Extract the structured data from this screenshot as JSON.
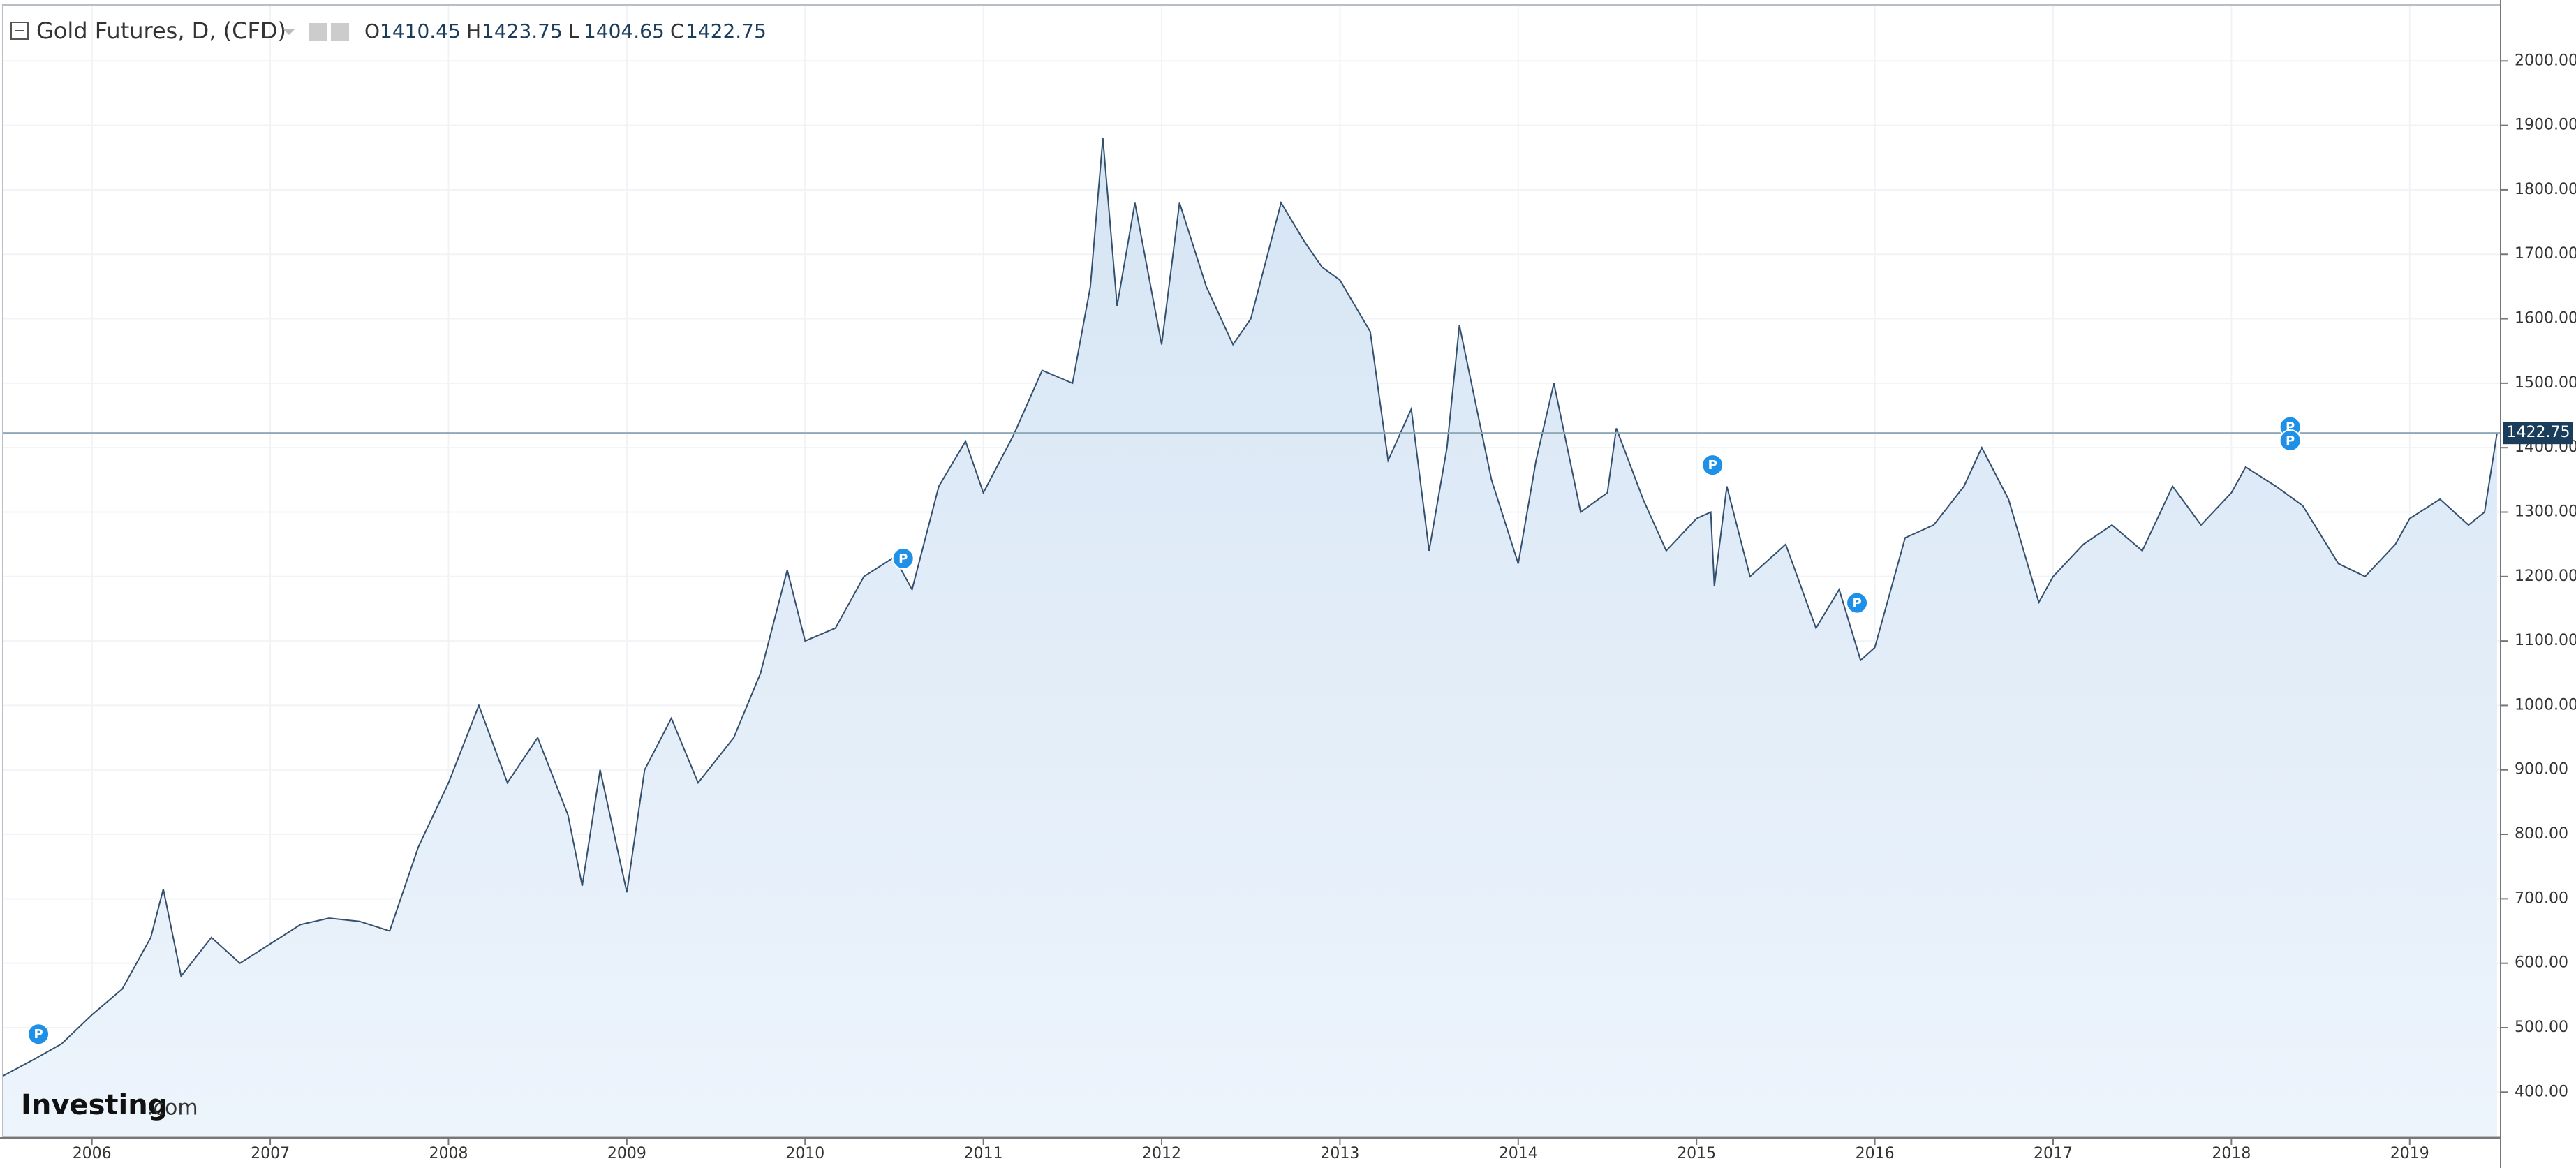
{
  "chart_data": {
    "type": "area",
    "title": "Gold Futures, D, (CFD)",
    "ohlc": {
      "labels": [
        "O",
        "H",
        "L",
        "C"
      ],
      "values": [
        1410.45,
        1423.75,
        1404.65,
        1422.75
      ]
    },
    "x": [
      2005.5,
      2005.67,
      2005.83,
      2006.0,
      2006.17,
      2006.33,
      2006.4,
      2006.5,
      2006.67,
      2006.83,
      2007.0,
      2007.17,
      2007.33,
      2007.5,
      2007.67,
      2007.83,
      2008.0,
      2008.17,
      2008.33,
      2008.5,
      2008.67,
      2008.75,
      2008.85,
      2009.0,
      2009.1,
      2009.25,
      2009.4,
      2009.6,
      2009.75,
      2009.9,
      2010.0,
      2010.17,
      2010.33,
      2010.5,
      2010.6,
      2010.75,
      2010.9,
      2011.0,
      2011.17,
      2011.33,
      2011.5,
      2011.6,
      2011.67,
      2011.75,
      2011.85,
      2012.0,
      2012.1,
      2012.25,
      2012.4,
      2012.5,
      2012.67,
      2012.8,
      2012.9,
      2013.0,
      2013.17,
      2013.27,
      2013.4,
      2013.5,
      2013.6,
      2013.67,
      2013.85,
      2014.0,
      2014.1,
      2014.2,
      2014.35,
      2014.5,
      2014.55,
      2014.7,
      2014.83,
      2015.0,
      2015.08,
      2015.1,
      2015.17,
      2015.3,
      2015.5,
      2015.67,
      2015.8,
      2015.92,
      2016.0,
      2016.17,
      2016.33,
      2016.5,
      2016.6,
      2016.75,
      2016.92,
      2017.0,
      2017.17,
      2017.33,
      2017.5,
      2017.67,
      2017.83,
      2018.0,
      2018.08,
      2018.25,
      2018.4,
      2018.6,
      2018.75,
      2018.92,
      2019.0,
      2019.17,
      2019.33,
      2019.42,
      2019.49
    ],
    "values": [
      425,
      450,
      475,
      520,
      560,
      640,
      715,
      580,
      640,
      600,
      630,
      660,
      670,
      665,
      650,
      780,
      880,
      1000,
      880,
      950,
      830,
      720,
      900,
      710,
      900,
      980,
      880,
      950,
      1050,
      1210,
      1100,
      1120,
      1200,
      1230,
      1180,
      1340,
      1410,
      1330,
      1420,
      1520,
      1500,
      1650,
      1880,
      1620,
      1780,
      1560,
      1780,
      1650,
      1560,
      1600,
      1780,
      1720,
      1680,
      1660,
      1580,
      1380,
      1460,
      1240,
      1400,
      1590,
      1350,
      1220,
      1380,
      1500,
      1300,
      1330,
      1430,
      1320,
      1240,
      1290,
      1300,
      1185,
      1340,
      1200,
      1250,
      1120,
      1180,
      1070,
      1090,
      1260,
      1280,
      1340,
      1400,
      1320,
      1160,
      1200,
      1250,
      1280,
      1240,
      1340,
      1280,
      1330,
      1370,
      1340,
      1310,
      1220,
      1200,
      1250,
      1290,
      1320,
      1280,
      1300,
      1422.75
    ],
    "color": "#34506e",
    "events": {
      "label": "P",
      "x": [
        2005.7,
        2010.55,
        2015.09,
        2015.9,
        2018.33,
        2018.33
      ],
      "y": [
        490,
        1228,
        1373,
        1159,
        1432,
        1411
      ]
    },
    "xlim": [
      2005.5,
      2019.51
    ],
    "xticks": [
      2006,
      2007,
      2008,
      2009,
      2010,
      2011,
      2012,
      2013,
      2014,
      2015,
      2016,
      2017,
      2018,
      2019
    ],
    "ylim": [
      331,
      2087
    ],
    "yticks": [
      {
        "value": 400,
        "label": "400.00"
      },
      {
        "value": 500,
        "label": "500.00"
      },
      {
        "value": 600,
        "label": "600.00"
      },
      {
        "value": 700,
        "label": "700.00"
      },
      {
        "value": 800,
        "label": "800.00"
      },
      {
        "value": 900,
        "label": "900.00"
      },
      {
        "value": 1000,
        "label": "1000.00"
      },
      {
        "value": 1100,
        "label": "1100.00"
      },
      {
        "value": 1200,
        "label": "1200.00"
      },
      {
        "value": 1300,
        "label": "1300.00"
      },
      {
        "value": 1400,
        "label": "1400.00"
      },
      {
        "value": 1500,
        "label": "1500.00"
      },
      {
        "value": 1600,
        "label": "1600.00"
      },
      {
        "value": 1700,
        "label": "1700.00"
      },
      {
        "value": 1800,
        "label": "1800.00"
      },
      {
        "value": 1900,
        "label": "1900.00"
      },
      {
        "value": 2000,
        "label": "2000.00"
      }
    ],
    "last_price_label": "1422.75",
    "grid": true
  },
  "logo": {
    "brand": "Investing",
    "suffix": ".com"
  }
}
